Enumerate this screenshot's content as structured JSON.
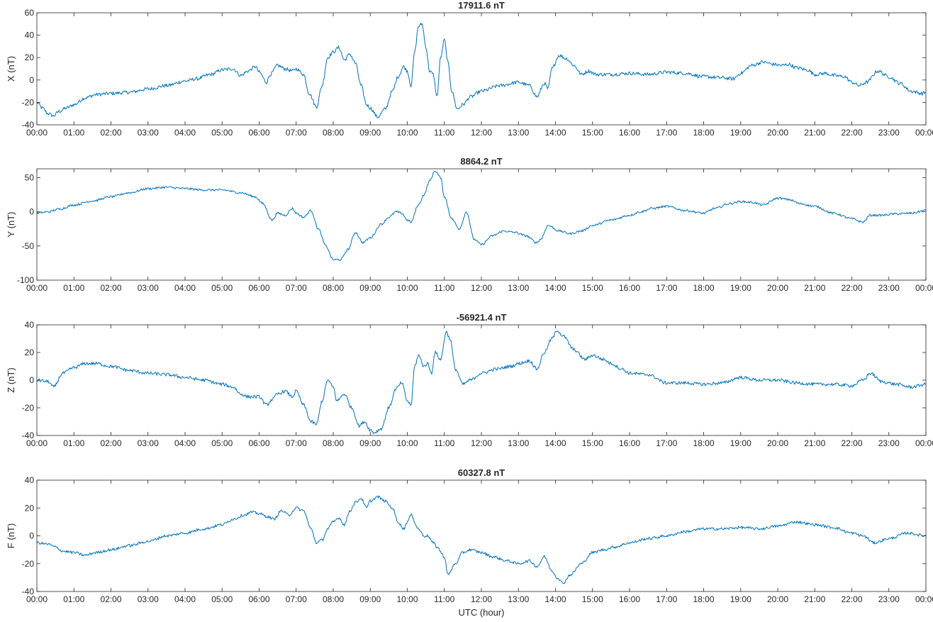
{
  "chart_data": [
    {
      "type": "line",
      "title": "17911.6 nT",
      "ylabel": "X (nT)",
      "xlabel": "",
      "xlim": [
        0,
        24
      ],
      "ylim": [
        -40,
        60
      ],
      "yticks": [
        -40,
        -20,
        0,
        20,
        40,
        60
      ],
      "xticks": [
        "00:00",
        "01:00",
        "02:00",
        "03:00",
        "04:00",
        "05:00",
        "06:00",
        "07:00",
        "08:00",
        "09:00",
        "10:00",
        "11:00",
        "12:00",
        "13:00",
        "14:00",
        "15:00",
        "16:00",
        "17:00",
        "18:00",
        "19:00",
        "20:00",
        "21:00",
        "22:00",
        "23:00",
        "00:00"
      ],
      "grid": false,
      "color": "#0072BD",
      "noise": 1.6,
      "series": [
        {
          "x": [
            0,
            0.15,
            0.3,
            0.45,
            0.6,
            0.8,
            1.0,
            1.3,
            1.6,
            2.0,
            2.5,
            3.0,
            3.5,
            4.0,
            4.3,
            4.7,
            5.0,
            5.3,
            5.5,
            5.7,
            5.9,
            6.0,
            6.2,
            6.3,
            6.5,
            6.7,
            6.9,
            7.0,
            7.2,
            7.35,
            7.55,
            7.7,
            7.85,
            8.0,
            8.15,
            8.3,
            8.45,
            8.6,
            8.75,
            8.9,
            9.0,
            9.2,
            9.4,
            9.6,
            9.75,
            9.9,
            10.0,
            10.1,
            10.2,
            10.3,
            10.4,
            10.5,
            10.6,
            10.7,
            10.8,
            10.9,
            11.0,
            11.1,
            11.2,
            11.35,
            11.5,
            11.7,
            12.0,
            12.5,
            13.0,
            13.3,
            13.5,
            13.7,
            13.8,
            13.9,
            14.1,
            14.3,
            14.5,
            14.7,
            14.9,
            15.1,
            15.5,
            16.0,
            16.5,
            17.0,
            17.5,
            18.0,
            18.5,
            18.8,
            19.0,
            19.3,
            19.6,
            19.9,
            20.1,
            20.3,
            20.5,
            20.8,
            21.0,
            21.3,
            21.5,
            21.8,
            22.0,
            22.2,
            22.4,
            22.7,
            23.0,
            23.3,
            23.6,
            23.9,
            24.0
          ],
          "values": [
            -20,
            -25,
            -30,
            -32,
            -28,
            -25,
            -22,
            -16,
            -13,
            -12,
            -11,
            -8,
            -5,
            -1,
            1,
            5,
            9,
            10,
            4,
            8,
            12,
            7,
            -2,
            5,
            13,
            10,
            8,
            10,
            5,
            -12,
            -24,
            -5,
            20,
            25,
            29,
            18,
            23,
            15,
            -5,
            -22,
            -25,
            -33,
            -26,
            -10,
            3,
            12,
            8,
            -5,
            25,
            48,
            50,
            30,
            8,
            5,
            -15,
            20,
            36,
            15,
            -10,
            -26,
            -22,
            -15,
            -10,
            -5,
            -2,
            -5,
            -15,
            -3,
            -8,
            10,
            22,
            19,
            13,
            5,
            8,
            5,
            5,
            6,
            5,
            7,
            6,
            3,
            2,
            1,
            6,
            13,
            16,
            14,
            13,
            14,
            11,
            9,
            5,
            6,
            4,
            3,
            -2,
            -5,
            -2,
            8,
            3,
            -3,
            -10,
            -12,
            -11
          ]
        }
      ]
    },
    {
      "type": "line",
      "title": "8864.2 nT",
      "ylabel": "Y (nT)",
      "xlabel": "",
      "xlim": [
        0,
        24
      ],
      "ylim": [
        -100,
        63
      ],
      "yticks": [
        -100,
        -50,
        0,
        50
      ],
      "xticks": [
        "00:00",
        "01:00",
        "02:00",
        "03:00",
        "04:00",
        "05:00",
        "06:00",
        "07:00",
        "08:00",
        "09:00",
        "10:00",
        "11:00",
        "12:00",
        "13:00",
        "14:00",
        "15:00",
        "16:00",
        "17:00",
        "18:00",
        "19:00",
        "20:00",
        "21:00",
        "22:00",
        "23:00",
        "00:00"
      ],
      "grid": false,
      "color": "#0072BD",
      "noise": 1.6,
      "series": [
        {
          "x": [
            0,
            0.3,
            0.6,
            1.0,
            1.5,
            2.0,
            2.5,
            3.0,
            3.5,
            4.0,
            4.5,
            5.0,
            5.5,
            5.9,
            6.1,
            6.35,
            6.5,
            6.7,
            6.9,
            7.0,
            7.2,
            7.4,
            7.6,
            7.8,
            8.0,
            8.2,
            8.4,
            8.6,
            8.8,
            9.0,
            9.3,
            9.5,
            9.7,
            9.85,
            10.0,
            10.1,
            10.3,
            10.45,
            10.6,
            10.75,
            10.9,
            11.0,
            11.2,
            11.4,
            11.6,
            11.8,
            12.0,
            12.3,
            12.6,
            12.9,
            13.2,
            13.5,
            13.6,
            13.8,
            14.1,
            14.4,
            14.7,
            15.0,
            15.5,
            16.0,
            16.3,
            16.6,
            17.0,
            17.5,
            18.0,
            18.3,
            18.7,
            19.0,
            19.3,
            19.6,
            20.0,
            20.3,
            20.6,
            21.0,
            21.5,
            22.0,
            22.3,
            22.5,
            22.8,
            23.2,
            23.6,
            24.0
          ],
          "values": [
            -2,
            0,
            4,
            10,
            16,
            22,
            28,
            34,
            36,
            34,
            32,
            32,
            28,
            22,
            12,
            -12,
            -2,
            -5,
            5,
            -2,
            -8,
            2,
            -25,
            -50,
            -70,
            -70,
            -55,
            -30,
            -45,
            -38,
            -18,
            -8,
            0,
            -2,
            -12,
            -15,
            10,
            25,
            45,
            60,
            50,
            22,
            -10,
            -25,
            0,
            -40,
            -48,
            -35,
            -28,
            -30,
            -35,
            -45,
            -40,
            -20,
            -28,
            -32,
            -28,
            -20,
            -12,
            -5,
            0,
            5,
            8,
            2,
            -2,
            5,
            12,
            15,
            14,
            10,
            20,
            18,
            12,
            8,
            -2,
            -10,
            -15,
            -5,
            -5,
            -3,
            -2,
            2
          ]
        }
      ]
    },
    {
      "type": "line",
      "title": "-56921.4 nT",
      "ylabel": "Z (nT)",
      "xlabel": "",
      "xlim": [
        0,
        24
      ],
      "ylim": [
        -40,
        40
      ],
      "yticks": [
        -40,
        -20,
        0,
        20,
        40
      ],
      "xticks": [
        "00:00",
        "01:00",
        "02:00",
        "03:00",
        "04:00",
        "05:00",
        "06:00",
        "07:00",
        "08:00",
        "09:00",
        "10:00",
        "11:00",
        "12:00",
        "13:00",
        "14:00",
        "15:00",
        "16:00",
        "17:00",
        "18:00",
        "19:00",
        "20:00",
        "21:00",
        "22:00",
        "23:00",
        "00:00"
      ],
      "grid": false,
      "color": "#0072BD",
      "noise": 1.2,
      "series": [
        {
          "x": [
            0,
            0.3,
            0.45,
            0.7,
            1.0,
            1.3,
            1.6,
            2.0,
            2.5,
            3.0,
            3.5,
            4.0,
            4.5,
            5.0,
            5.3,
            5.5,
            5.7,
            6.0,
            6.2,
            6.35,
            6.5,
            6.7,
            6.9,
            7.0,
            7.2,
            7.4,
            7.55,
            7.7,
            7.85,
            8.0,
            8.1,
            8.3,
            8.5,
            8.7,
            8.85,
            9.0,
            9.1,
            9.3,
            9.5,
            9.7,
            9.85,
            10.0,
            10.1,
            10.2,
            10.3,
            10.45,
            10.55,
            10.65,
            10.75,
            10.9,
            11.05,
            11.15,
            11.3,
            11.5,
            11.7,
            12.0,
            12.4,
            12.8,
            13.0,
            13.3,
            13.5,
            13.7,
            13.9,
            14.05,
            14.2,
            14.5,
            14.8,
            15.0,
            15.3,
            15.5,
            15.8,
            16.0,
            16.5,
            17.0,
            17.5,
            18.0,
            18.5,
            19.0,
            19.5,
            20.0,
            20.5,
            21.0,
            21.5,
            22.0,
            22.3,
            22.5,
            22.8,
            23.2,
            23.6,
            24.0
          ],
          "values": [
            0,
            -1,
            -5,
            5,
            9,
            12,
            12,
            10,
            7,
            5,
            4,
            2,
            0,
            -3,
            -5,
            -10,
            -12,
            -12,
            -18,
            -14,
            -10,
            -8,
            -12,
            -8,
            -18,
            -30,
            -32,
            -15,
            0,
            -5,
            -15,
            -10,
            -20,
            -33,
            -30,
            -36,
            -38,
            -35,
            -20,
            -6,
            -2,
            -15,
            -18,
            10,
            18,
            10,
            12,
            5,
            20,
            15,
            35,
            30,
            8,
            -3,
            0,
            5,
            8,
            10,
            12,
            14,
            8,
            20,
            30,
            36,
            32,
            22,
            15,
            18,
            15,
            12,
            8,
            5,
            4,
            -2,
            -2,
            -3,
            -2,
            2,
            0,
            0,
            -2,
            -3,
            -3,
            -4,
            0,
            5,
            -1,
            -3,
            -5,
            -3
          ]
        }
      ]
    },
    {
      "type": "line",
      "title": "60327.8 nT",
      "ylabel": "F (nT)",
      "xlabel": "UTC (hour)",
      "xlim": [
        0,
        24
      ],
      "ylim": [
        -40,
        40
      ],
      "yticks": [
        -40,
        -20,
        0,
        20,
        40
      ],
      "xticks": [
        "00:00",
        "01:00",
        "02:00",
        "03:00",
        "04:00",
        "05:00",
        "06:00",
        "07:00",
        "08:00",
        "09:00",
        "10:00",
        "11:00",
        "12:00",
        "13:00",
        "14:00",
        "15:00",
        "16:00",
        "17:00",
        "18:00",
        "19:00",
        "20:00",
        "21:00",
        "22:00",
        "23:00",
        "00:00"
      ],
      "grid": false,
      "color": "#0072BD",
      "noise": 1.0,
      "series": [
        {
          "x": [
            0,
            0.3,
            0.5,
            0.7,
            1.0,
            1.3,
            1.6,
            2.0,
            2.5,
            3.0,
            3.5,
            4.0,
            4.5,
            5.0,
            5.3,
            5.6,
            5.8,
            6.0,
            6.2,
            6.4,
            6.6,
            6.8,
            7.0,
            7.2,
            7.4,
            7.55,
            7.7,
            7.85,
            8.0,
            8.15,
            8.3,
            8.45,
            8.6,
            8.75,
            8.9,
            9.0,
            9.2,
            9.4,
            9.6,
            9.75,
            9.9,
            10.0,
            10.1,
            10.3,
            10.45,
            10.55,
            10.7,
            10.8,
            11.0,
            11.1,
            11.3,
            11.5,
            11.7,
            12.0,
            12.3,
            12.7,
            13.0,
            13.3,
            13.5,
            13.7,
            13.9,
            14.05,
            14.2,
            14.4,
            14.7,
            15.0,
            15.3,
            15.6,
            16.0,
            16.5,
            17.0,
            17.5,
            18.0,
            18.5,
            19.0,
            19.5,
            20.0,
            20.5,
            21.0,
            21.5,
            22.0,
            22.3,
            22.6,
            23.0,
            23.5,
            24.0
          ],
          "values": [
            -5,
            -6,
            -8,
            -11,
            -12,
            -14,
            -12,
            -10,
            -7,
            -4,
            0,
            2,
            5,
            8,
            12,
            15,
            17,
            16,
            14,
            12,
            18,
            15,
            20,
            18,
            5,
            -5,
            -3,
            5,
            10,
            13,
            8,
            18,
            24,
            27,
            20,
            25,
            28,
            25,
            20,
            10,
            5,
            10,
            15,
            5,
            0,
            0,
            -5,
            -8,
            -15,
            -28,
            -20,
            -12,
            -10,
            -12,
            -15,
            -18,
            -20,
            -18,
            -22,
            -15,
            -25,
            -30,
            -34,
            -28,
            -20,
            -12,
            -10,
            -8,
            -5,
            -2,
            0,
            3,
            5,
            5,
            6,
            5,
            7,
            10,
            8,
            6,
            2,
            0,
            -5,
            -2,
            2,
            0
          ]
        }
      ]
    }
  ]
}
